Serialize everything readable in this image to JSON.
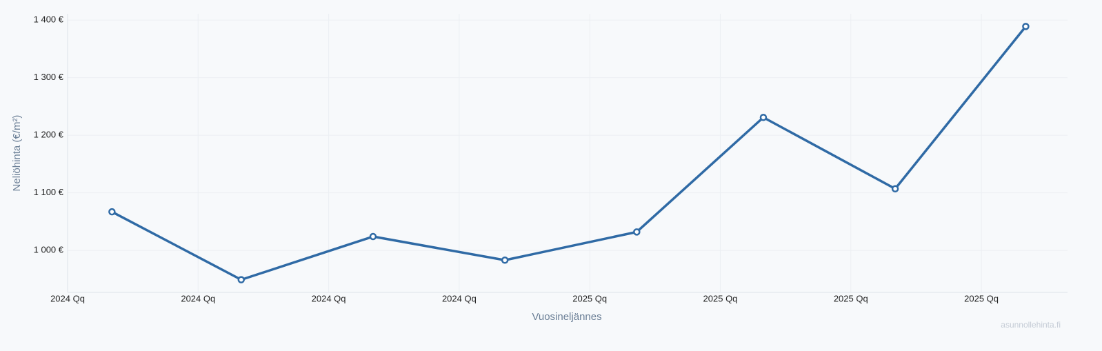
{
  "chart_data": {
    "type": "line",
    "x_label": "Vuosineljännes",
    "y_label": "Neliöhinta (€/m²)",
    "watermark": "asunnollehinta.fi",
    "x": [
      0.34,
      1.33,
      2.34,
      3.35,
      4.36,
      5.33,
      6.34,
      7.34
    ],
    "series": [
      {
        "name": "Neliöhinta",
        "color": "#2f6aa5",
        "values": [
          1067,
          949,
          1024,
          983,
          1032,
          1231,
          1107,
          1389
        ]
      }
    ],
    "xlim": [
      0,
      7.66
    ],
    "xticks": [
      {
        "value": 0,
        "label": "2024 Qq"
      },
      {
        "value": 1,
        "label": "2024 Qq"
      },
      {
        "value": 2,
        "label": "2024 Qq"
      },
      {
        "value": 3,
        "label": "2024 Qq"
      },
      {
        "value": 4,
        "label": "2025 Qq"
      },
      {
        "value": 5,
        "label": "2025 Qq"
      },
      {
        "value": 6,
        "label": "2025 Qq"
      },
      {
        "value": 7,
        "label": "2025 Qq"
      }
    ],
    "ylim": [
      927,
      1411
    ],
    "yticks": [
      {
        "value": 1000,
        "label": "1 000 €"
      },
      {
        "value": 1100,
        "label": "1 100 €"
      },
      {
        "value": 1200,
        "label": "1 200 €"
      },
      {
        "value": 1300,
        "label": "1 300 €"
      },
      {
        "value": 1400,
        "label": "1 400 €"
      }
    ],
    "grid": true
  }
}
